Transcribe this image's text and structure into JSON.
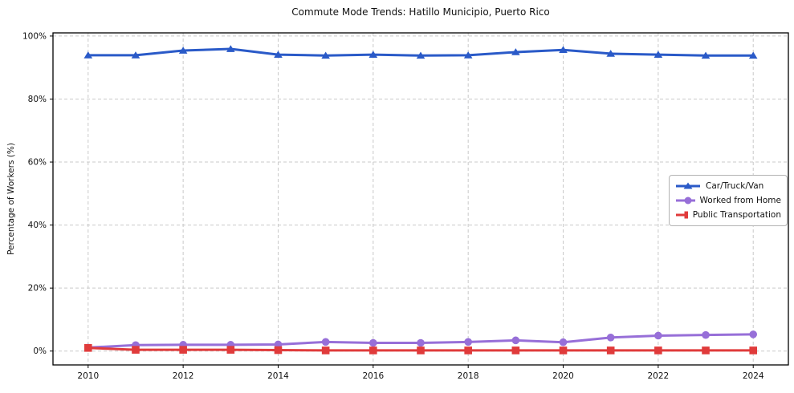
{
  "chart_data": {
    "type": "line",
    "title": "Commute Mode Trends: Hatillo Municipio, Puerto Rico",
    "xlabel": "",
    "ylabel": "Percentage of Workers (%)",
    "x": [
      2010,
      2011,
      2012,
      2013,
      2014,
      2015,
      2016,
      2017,
      2018,
      2019,
      2020,
      2021,
      2022,
      2023,
      2024
    ],
    "series": [
      {
        "name": "Car/Truck/Van",
        "marker": "triangle-up",
        "color": "#2a5ac8",
        "values": [
          93.9,
          93.9,
          95.4,
          95.9,
          94.1,
          93.8,
          94.1,
          93.8,
          93.9,
          94.9,
          95.6,
          94.4,
          94.1,
          93.8,
          93.8
        ]
      },
      {
        "name": "Worked from Home",
        "marker": "circle",
        "color": "#976fd8",
        "values": [
          1.1,
          1.9,
          2.0,
          2.0,
          2.1,
          2.9,
          2.6,
          2.6,
          2.9,
          3.4,
          2.8,
          4.3,
          4.9,
          5.1,
          5.3
        ]
      },
      {
        "name": "Public Transportation",
        "marker": "square",
        "color": "#e03b3b",
        "values": [
          1.0,
          0.4,
          0.4,
          0.4,
          0.3,
          0.2,
          0.2,
          0.2,
          0.2,
          0.2,
          0.2,
          0.2,
          0.2,
          0.2,
          0.2
        ]
      }
    ],
    "xtick_values": [
      2010,
      2012,
      2014,
      2016,
      2018,
      2020,
      2022,
      2024
    ],
    "xtick_labels": [
      "2010",
      "2012",
      "2014",
      "2016",
      "2018",
      "2020",
      "2022",
      "2024"
    ],
    "ytick_values": [
      0,
      20,
      40,
      60,
      80,
      100
    ],
    "ytick_labels": [
      "0%",
      "20%",
      "40%",
      "60%",
      "80%",
      "100%"
    ],
    "xlim": [
      2009.26,
      2024.74
    ],
    "ylim": [
      -4.4,
      101.0
    ],
    "grid": true,
    "grid_style": "dashed",
    "grid_color": "#c9c9c9",
    "spine_color": "#000000",
    "legend_position": "center right"
  }
}
